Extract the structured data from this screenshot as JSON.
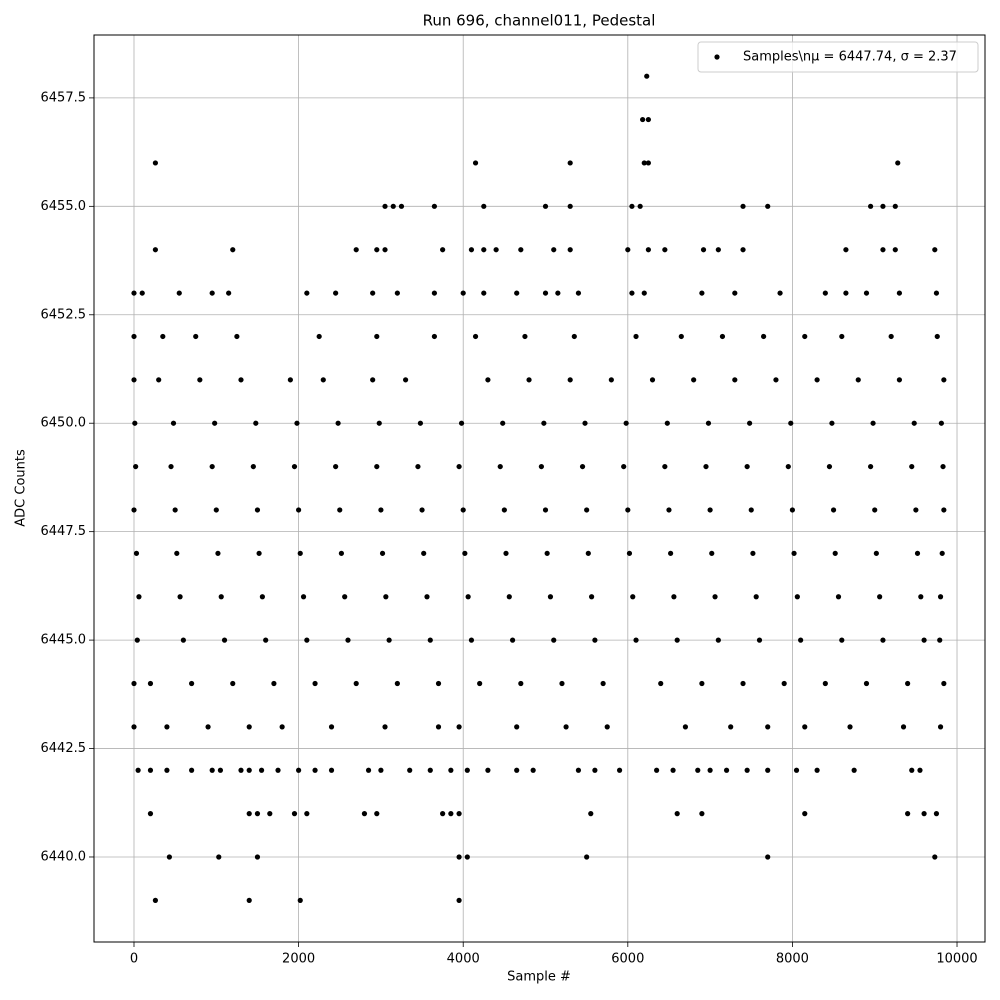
{
  "chart_data": {
    "type": "scatter",
    "title": "Run 696, channel011, Pedestal",
    "xlabel": "Sample #",
    "ylabel": "ADC Counts",
    "xlim": [
      -486,
      10340
    ],
    "ylim": [
      6438.04,
      6458.95
    ],
    "xticks": [
      0,
      2000,
      4000,
      6000,
      8000,
      10000
    ],
    "yticks": [
      {
        "value": 6440,
        "label": "6440.0"
      },
      {
        "value": 6442.5,
        "label": "6442.5"
      },
      {
        "value": 6445,
        "label": "6445.0"
      },
      {
        "value": 6447.5,
        "label": "6447.5"
      },
      {
        "value": 6450,
        "label": "6450.0"
      },
      {
        "value": 6452.5,
        "label": "6452.5"
      },
      {
        "value": 6455,
        "label": "6455.0"
      },
      {
        "value": 6457.5,
        "label": "6457.5"
      }
    ],
    "grid": true,
    "legend": "upper right",
    "series": [
      {
        "name": "Samples\\nμ = 6447.74, σ = 2.37",
        "color": "#000000",
        "x": [
          0,
          500,
          1000,
          1500,
          2000,
          2500,
          3000,
          3500,
          4000,
          4500,
          5000,
          5500,
          6000,
          6500,
          7000,
          7500,
          8000,
          8500,
          9000,
          9500,
          9840,
          20,
          450,
          950,
          1450,
          1950,
          2450,
          2950,
          3450,
          3950,
          4450,
          4950,
          5450,
          5950,
          6450,
          6950,
          7450,
          7950,
          8450,
          8950,
          9450,
          9830,
          30,
          520,
          1020,
          1520,
          2020,
          2520,
          3020,
          3520,
          4020,
          4520,
          5020,
          5520,
          6020,
          6520,
          7020,
          7520,
          8020,
          8520,
          9020,
          9520,
          9820,
          10,
          480,
          980,
          1480,
          1980,
          2480,
          2980,
          3480,
          3980,
          4480,
          4980,
          5480,
          5980,
          6480,
          6980,
          7480,
          7980,
          8480,
          8980,
          9480,
          9810,
          60,
          560,
          1060,
          1560,
          2060,
          2560,
          3060,
          3560,
          4060,
          4560,
          5060,
          5560,
          6060,
          6560,
          7060,
          7560,
          8060,
          8560,
          9060,
          9560,
          9800,
          40,
          600,
          1100,
          1600,
          2100,
          2600,
          3100,
          3600,
          4100,
          4600,
          5100,
          5600,
          6100,
          6600,
          7100,
          7600,
          8100,
          8600,
          9100,
          9600,
          9790,
          0,
          200,
          700,
          1200,
          1700,
          2200,
          2700,
          3200,
          3700,
          4200,
          4700,
          5200,
          5700,
          6400,
          6900,
          7400,
          7900,
          8400,
          8900,
          9400,
          9840,
          0,
          300,
          800,
          1300,
          1900,
          2300,
          2900,
          3300,
          4300,
          4800,
          5300,
          5800,
          6300,
          6800,
          7300,
          7800,
          8300,
          8800,
          9300,
          9840,
          0,
          400,
          900,
          1400,
          1800,
          2400,
          3050,
          3700,
          3950,
          4650,
          5250,
          5750,
          6700,
          7250,
          7700,
          8150,
          8700,
          9350,
          9800,
          0,
          350,
          750,
          1250,
          2250,
          2950,
          3650,
          4150,
          4750,
          5350,
          6100,
          6650,
          7150,
          7650,
          8150,
          8600,
          9200,
          9760,
          0,
          100,
          550,
          950,
          1150,
          2100,
          2450,
          2900,
          3200,
          3650,
          4000,
          4250,
          4650,
          5000,
          5150,
          5400,
          6050,
          6200,
          6900,
          7300,
          7850,
          8400,
          8650,
          8900,
          9300,
          9750,
          260,
          1200,
          2700,
          2950,
          3050,
          3750,
          4100,
          4250,
          4400,
          4700,
          5100,
          5300,
          6000,
          6250,
          6450,
          6920,
          7100,
          7400,
          8650,
          9100,
          9250,
          9730,
          3050,
          3150,
          3250,
          3650,
          4250,
          5000,
          5300,
          6050,
          6150,
          7400,
          7700,
          8950,
          9100,
          9250,
          260,
          4150,
          5300,
          6200,
          6250,
          9280,
          6180,
          6250,
          6230,
          50,
          200,
          400,
          700,
          950,
          1050,
          1300,
          1400,
          1550,
          1750,
          2000,
          2200,
          2400,
          2850,
          3000,
          3350,
          3600,
          3850,
          4050,
          4300,
          4650,
          4850,
          5400,
          5600,
          5900,
          6350,
          6550,
          6850,
          7000,
          7200,
          7450,
          7700,
          8050,
          8300,
          8750,
          9450,
          9550,
          200,
          1400,
          1500,
          1650,
          1950,
          2100,
          2800,
          2950,
          3750,
          3850,
          3950,
          5550,
          6600,
          6900,
          8150,
          9400,
          9600,
          9750,
          430,
          1030,
          1500,
          3950,
          4050,
          5500,
          7700,
          9730,
          260,
          1400,
          2020,
          3950
        ],
        "y": [
          6448,
          6448,
          6448,
          6448,
          6448,
          6448,
          6448,
          6448,
          6448,
          6448,
          6448,
          6448,
          6448,
          6448,
          6448,
          6448,
          6448,
          6448,
          6448,
          6448,
          6448,
          6449,
          6449,
          6449,
          6449,
          6449,
          6449,
          6449,
          6449,
          6449,
          6449,
          6449,
          6449,
          6449,
          6449,
          6449,
          6449,
          6449,
          6449,
          6449,
          6449,
          6449,
          6447,
          6447,
          6447,
          6447,
          6447,
          6447,
          6447,
          6447,
          6447,
          6447,
          6447,
          6447,
          6447,
          6447,
          6447,
          6447,
          6447,
          6447,
          6447,
          6447,
          6447,
          6450,
          6450,
          6450,
          6450,
          6450,
          6450,
          6450,
          6450,
          6450,
          6450,
          6450,
          6450,
          6450,
          6450,
          6450,
          6450,
          6450,
          6450,
          6450,
          6450,
          6450,
          6446,
          6446,
          6446,
          6446,
          6446,
          6446,
          6446,
          6446,
          6446,
          6446,
          6446,
          6446,
          6446,
          6446,
          6446,
          6446,
          6446,
          6446,
          6446,
          6446,
          6446,
          6445,
          6445,
          6445,
          6445,
          6445,
          6445,
          6445,
          6445,
          6445,
          6445,
          6445,
          6445,
          6445,
          6445,
          6445,
          6445,
          6445,
          6445,
          6445,
          6445,
          6445,
          6444,
          6444,
          6444,
          6444,
          6444,
          6444,
          6444,
          6444,
          6444,
          6444,
          6444,
          6444,
          6444,
          6444,
          6444,
          6444,
          6444,
          6444,
          6444,
          6444,
          6444,
          6451,
          6451,
          6451,
          6451,
          6451,
          6451,
          6451,
          6451,
          6451,
          6451,
          6451,
          6451,
          6451,
          6451,
          6451,
          6451,
          6451,
          6451,
          6451,
          6451,
          6443,
          6443,
          6443,
          6443,
          6443,
          6443,
          6443,
          6443,
          6443,
          6443,
          6443,
          6443,
          6443,
          6443,
          6443,
          6443,
          6443,
          6443,
          6443,
          6452,
          6452,
          6452,
          6452,
          6452,
          6452,
          6452,
          6452,
          6452,
          6452,
          6452,
          6452,
          6452,
          6452,
          6452,
          6452,
          6452,
          6452,
          6453,
          6453,
          6453,
          6453,
          6453,
          6453,
          6453,
          6453,
          6453,
          6453,
          6453,
          6453,
          6453,
          6453,
          6453,
          6453,
          6453,
          6453,
          6453,
          6453,
          6453,
          6453,
          6453,
          6453,
          6453,
          6453,
          6454,
          6454,
          6454,
          6454,
          6454,
          6454,
          6454,
          6454,
          6454,
          6454,
          6454,
          6454,
          6454,
          6454,
          6454,
          6454,
          6454,
          6454,
          6454,
          6454,
          6454,
          6454,
          6455,
          6455,
          6455,
          6455,
          6455,
          6455,
          6455,
          6455,
          6455,
          6455,
          6455,
          6455,
          6455,
          6455,
          6456,
          6456,
          6456,
          6456,
          6456,
          6456,
          6457,
          6457,
          6458,
          6442,
          6442,
          6442,
          6442,
          6442,
          6442,
          6442,
          6442,
          6442,
          6442,
          6442,
          6442,
          6442,
          6442,
          6442,
          6442,
          6442,
          6442,
          6442,
          6442,
          6442,
          6442,
          6442,
          6442,
          6442,
          6442,
          6442,
          6442,
          6442,
          6442,
          6442,
          6442,
          6442,
          6442,
          6442,
          6442,
          6442,
          6441,
          6441,
          6441,
          6441,
          6441,
          6441,
          6441,
          6441,
          6441,
          6441,
          6441,
          6441,
          6441,
          6441,
          6441,
          6441,
          6441,
          6441,
          6440,
          6440,
          6440,
          6440,
          6440,
          6440,
          6440,
          6440,
          6439,
          6439,
          6439,
          6439
        ]
      }
    ]
  }
}
